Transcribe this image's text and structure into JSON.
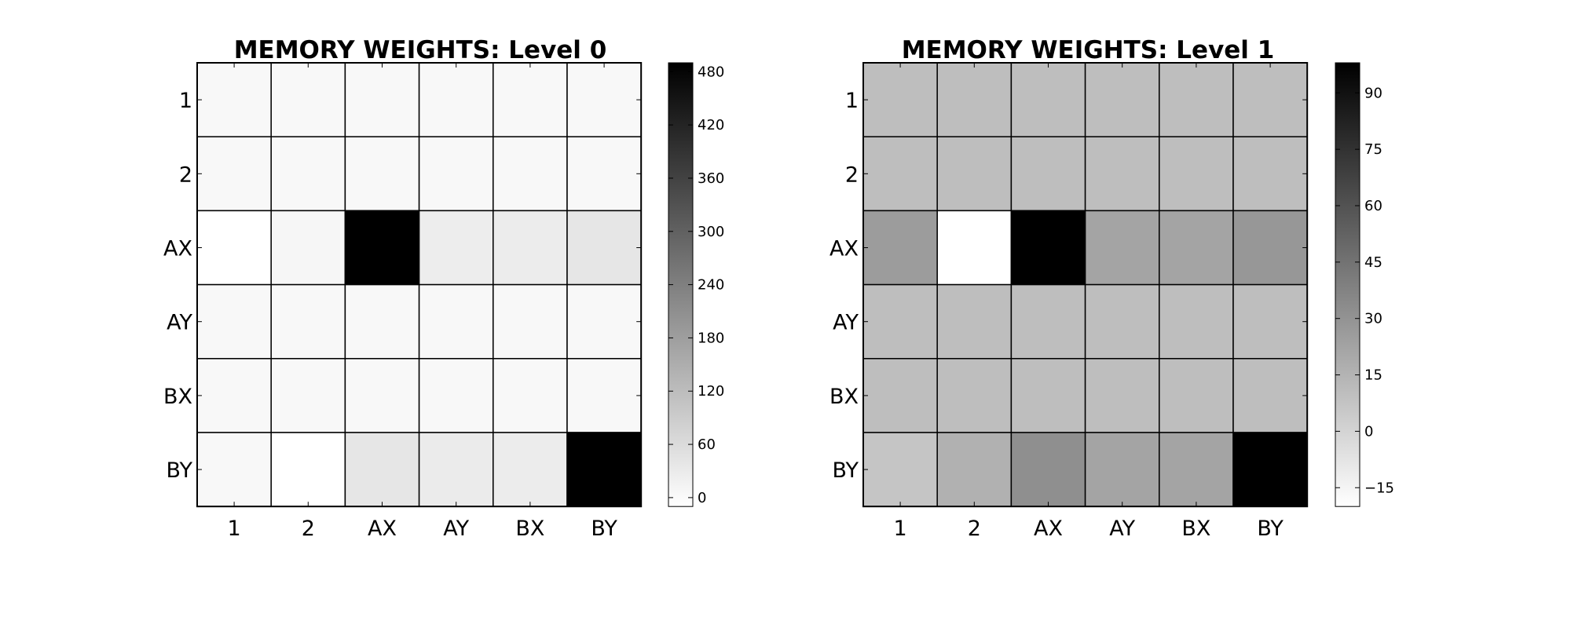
{
  "chart_data": [
    {
      "type": "heatmap",
      "title": "MEMORY WEIGHTS: Level 0",
      "xlabel": "",
      "ylabel": "",
      "x_categories": [
        "1",
        "2",
        "AX",
        "AY",
        "BX",
        "BY"
      ],
      "y_categories": [
        "1",
        "2",
        "AX",
        "AY",
        "BX",
        "BY"
      ],
      "values": [
        [
          3,
          3,
          3,
          3,
          3,
          3
        ],
        [
          3,
          3,
          3,
          3,
          3,
          3
        ],
        [
          -10,
          8,
          490,
          25,
          27,
          40
        ],
        [
          3,
          3,
          3,
          3,
          3,
          3
        ],
        [
          3,
          3,
          3,
          3,
          3,
          3
        ],
        [
          3,
          -10,
          40,
          30,
          27,
          490
        ]
      ],
      "colormap": "gray_r",
      "vmin": -10,
      "vmax": 490,
      "colorbar_ticks": [
        0,
        60,
        120,
        180,
        240,
        300,
        360,
        420,
        480
      ],
      "colorbar_tick_labels": [
        "0",
        "60",
        "120",
        "180",
        "240",
        "300",
        "360",
        "420",
        "480"
      ],
      "grid": false
    },
    {
      "type": "heatmap",
      "title": "MEMORY WEIGHTS: Level 1",
      "xlabel": "",
      "ylabel": "",
      "x_categories": [
        "1",
        "2",
        "AX",
        "AY",
        "BX",
        "BY"
      ],
      "y_categories": [
        "1",
        "2",
        "AX",
        "AY",
        "BX",
        "BY"
      ],
      "values": [
        [
          10,
          10,
          10,
          10,
          10,
          10
        ],
        [
          10,
          10,
          10,
          10,
          10,
          10
        ],
        [
          26,
          -20,
          98,
          22,
          22,
          28
        ],
        [
          10,
          10,
          10,
          10,
          10,
          10
        ],
        [
          10,
          10,
          10,
          10,
          10,
          10
        ],
        [
          7,
          16,
          32,
          22,
          22,
          98
        ]
      ],
      "colormap": "gray_r",
      "vmin": -20,
      "vmax": 98,
      "colorbar_ticks": [
        -15,
        0,
        15,
        30,
        45,
        60,
        75,
        90
      ],
      "colorbar_tick_labels": [
        "−15",
        "0",
        "15",
        "30",
        "45",
        "60",
        "75",
        "90"
      ],
      "grid": false
    }
  ]
}
